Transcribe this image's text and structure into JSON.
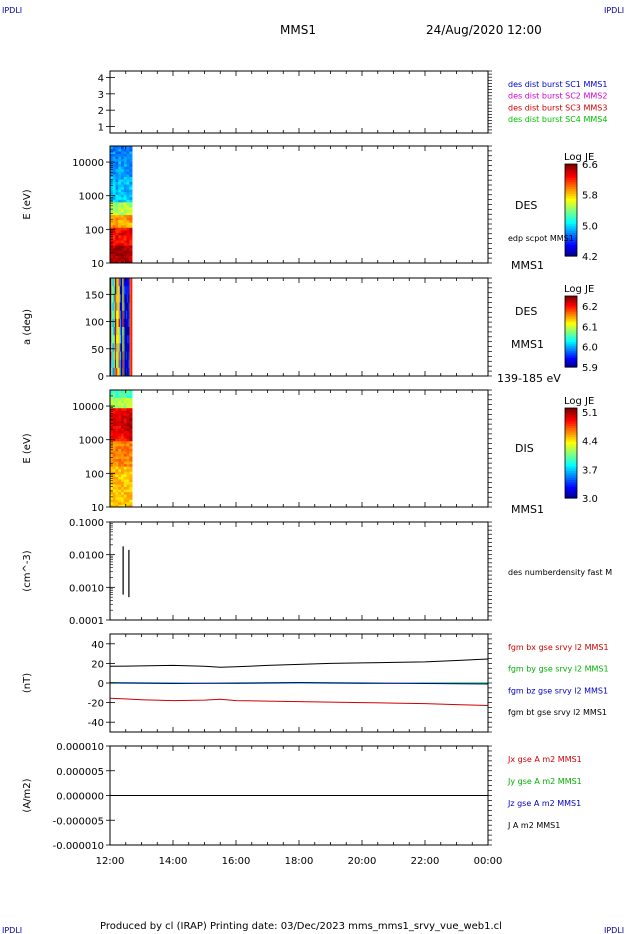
{
  "corner_mark": "IPDLI",
  "header": {
    "spacecraft": "MMS1",
    "datetime": "24/Aug/2020 12:00"
  },
  "footer": "Produced by cl (IRAP)   Printing date: 03/Dec/2023   mms_mms1_srvy_vue_web1.cl",
  "colors": {
    "mms1": "#0000d0",
    "mms2": "#d000d0",
    "mms3": "#d00000",
    "mms4": "#00c000",
    "bx": "#d00000",
    "by": "#00b000",
    "bz": "#0000c0",
    "bt": "#000000"
  },
  "chart_data": {
    "type": "multi-panel time series",
    "time_axis": {
      "tick_labels": [
        "12:00",
        "14:00",
        "16:00",
        "18:00",
        "20:00",
        "22:00",
        "00:00"
      ],
      "range": [
        "2020-08-24 12:00",
        "2020-08-25 00:00"
      ]
    },
    "panels": [
      {
        "id": "burst",
        "type": "line",
        "yticks": [
          "4",
          "3",
          "2",
          "1"
        ],
        "ylim": [
          0.6,
          4.4
        ],
        "legend": [
          {
            "text": "des dist burst SC1 MMS1",
            "color": "#0000d0"
          },
          {
            "text": "des dist burst SC2 MMS2",
            "color": "#d000d0"
          },
          {
            "text": "des dist burst SC3 MMS3",
            "color": "#d00000"
          },
          {
            "text": "des dist burst SC4 MMS4",
            "color": "#00c000"
          }
        ]
      },
      {
        "id": "des_energy",
        "type": "heatmap",
        "ylabel": "E (eV)",
        "yticks": [
          "10000",
          "1000",
          "100",
          "10"
        ],
        "log_y": true,
        "ylim": [
          10,
          30000
        ],
        "label": "DES",
        "annotation": "edp scpot MMS1",
        "bottom_label": "MMS1",
        "colorbar": {
          "title": "Log JE",
          "ticks": [
            "6.6",
            "5.8",
            "5.0",
            "4.2"
          ],
          "range": [
            4.2,
            6.6
          ]
        },
        "data_time_range": [
          "12:00",
          "12:42"
        ]
      },
      {
        "id": "des_pitch",
        "type": "heatmap",
        "ylabel": "a (deg)",
        "yticks": [
          "150",
          "100",
          "50",
          "0"
        ],
        "ylim": [
          0,
          180
        ],
        "label": "DES",
        "sub_label": "MMS1",
        "bottom_label": "139-185 eV",
        "colorbar": {
          "title": "Log JE",
          "ticks": [
            "6.2",
            "6.1",
            "6.0",
            "5.9"
          ],
          "range": [
            5.9,
            6.25
          ]
        },
        "data_time_range": [
          "12:00",
          "12:42"
        ]
      },
      {
        "id": "dis_energy",
        "type": "heatmap",
        "ylabel": "E (eV)",
        "yticks": [
          "10000",
          "1000",
          "100",
          "10"
        ],
        "log_y": true,
        "ylim": [
          10,
          30000
        ],
        "label": "DIS",
        "bottom_label": "MMS1",
        "colorbar": {
          "title": "Log JE",
          "ticks": [
            "5.1",
            "4.4",
            "3.7",
            "3.0"
          ],
          "range": [
            3.0,
            5.2
          ]
        },
        "data_time_range": [
          "12:00",
          "12:42"
        ]
      },
      {
        "id": "density",
        "type": "line",
        "ylabel": "(cm^-3)",
        "yticks": [
          "0.1000",
          "0.0100",
          "0.0010",
          "0.0001"
        ],
        "log_y": true,
        "ylim": [
          0.0001,
          0.1
        ],
        "legend": [
          {
            "text": "des numberdensity fast M",
            "color": "#000000"
          }
        ],
        "spikes": [
          {
            "t": "12:25",
            "low": 0.0006,
            "high": 0.018
          },
          {
            "t": "12:36",
            "low": 0.0005,
            "high": 0.014
          }
        ]
      },
      {
        "id": "fgm",
        "type": "line",
        "ylabel": "(nT)",
        "yticks": [
          "40",
          "20",
          "0",
          "-20",
          "-40"
        ],
        "ylim": [
          -50,
          50
        ],
        "legend": [
          {
            "text": "fgm bx gse srvy l2 MMS1",
            "color": "#d00000"
          },
          {
            "text": "fgm by gse srvy l2 MMS1",
            "color": "#00b000"
          },
          {
            "text": "fgm bz gse srvy l2 MMS1",
            "color": "#0000c0"
          },
          {
            "text": "fgm bt gse srvy l2 MMS1",
            "color": "#000000"
          }
        ],
        "series": [
          {
            "name": "bt",
            "color": "#000000",
            "t": [
              0,
              1,
              2,
              3,
              3.5,
              4,
              5,
              6,
              7,
              8,
              9,
              10,
              11,
              12
            ],
            "values": [
              17,
              17.5,
              18,
              17,
              16,
              16.5,
              18,
              19,
              20,
              20.5,
              21,
              21.5,
              23,
              24.5
            ]
          },
          {
            "name": "bx",
            "color": "#d00000",
            "t": [
              0,
              1,
              2,
              3,
              3.5,
              4,
              5,
              6,
              7,
              8,
              9,
              10,
              11,
              12
            ],
            "values": [
              -15.5,
              -17,
              -18,
              -17.5,
              -16.5,
              -18,
              -18.5,
              -19,
              -19.5,
              -20,
              -20.5,
              -21,
              -22,
              -23
            ]
          },
          {
            "name": "by",
            "color": "#00b000",
            "t": [
              0,
              2,
              4,
              6,
              8,
              10,
              12
            ],
            "values": [
              0.5,
              0,
              -0.5,
              0,
              -0.5,
              0,
              0
            ]
          },
          {
            "name": "bz",
            "color": "#0000c0",
            "t": [
              0,
              2,
              4,
              6,
              8,
              10,
              12
            ],
            "values": [
              0,
              -0.5,
              0,
              0.5,
              0,
              -0.5,
              -1
            ]
          }
        ]
      },
      {
        "id": "current",
        "type": "line",
        "ylabel": "(A/m2)",
        "yticks": [
          "0.000010",
          "0.000005",
          "0.000000",
          "-0.000005",
          "-0.000010"
        ],
        "ylim": [
          -1e-05,
          1e-05
        ],
        "legend": [
          {
            "text": "Jx gse A m2 MMS1",
            "color": "#d00000"
          },
          {
            "text": "Jy gse A m2 MMS1",
            "color": "#00b000"
          },
          {
            "text": "Jz gse A m2 MMS1",
            "color": "#0000c0"
          },
          {
            "text": "J A m2 MMS1",
            "color": "#000000"
          }
        ],
        "zero_line": true
      }
    ]
  }
}
